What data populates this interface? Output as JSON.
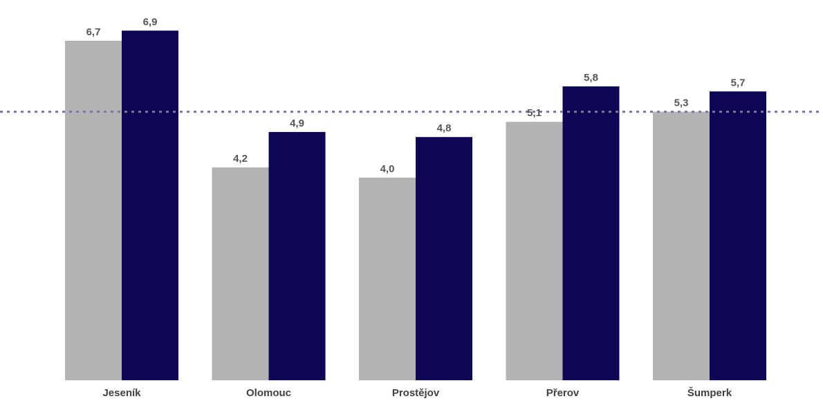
{
  "chart_data": {
    "type": "bar",
    "categories": [
      "Jeseník",
      "Olomouc",
      "Prostějov",
      "Přerov",
      "Šumperk"
    ],
    "series": [
      {
        "values": [
          6.7,
          4.2,
          4.0,
          5.1,
          5.3
        ],
        "labels": [
          "6,7",
          "4,2",
          "4,0",
          "5,1",
          "5,3"
        ],
        "color": "#b3b3b3"
      },
      {
        "values": [
          6.9,
          4.9,
          4.8,
          5.8,
          5.7
        ],
        "labels": [
          "6,9",
          "4,9",
          "4,8",
          "5,8",
          "5,7"
        ],
        "color": "#0c0654"
      }
    ],
    "reference_line": {
      "value": 5.3,
      "style": "dotted",
      "color": "#7a76a0"
    },
    "ylim": [
      0,
      7.3
    ],
    "grid": false,
    "legend": "none",
    "title": "",
    "xlabel": "",
    "ylabel": ""
  }
}
